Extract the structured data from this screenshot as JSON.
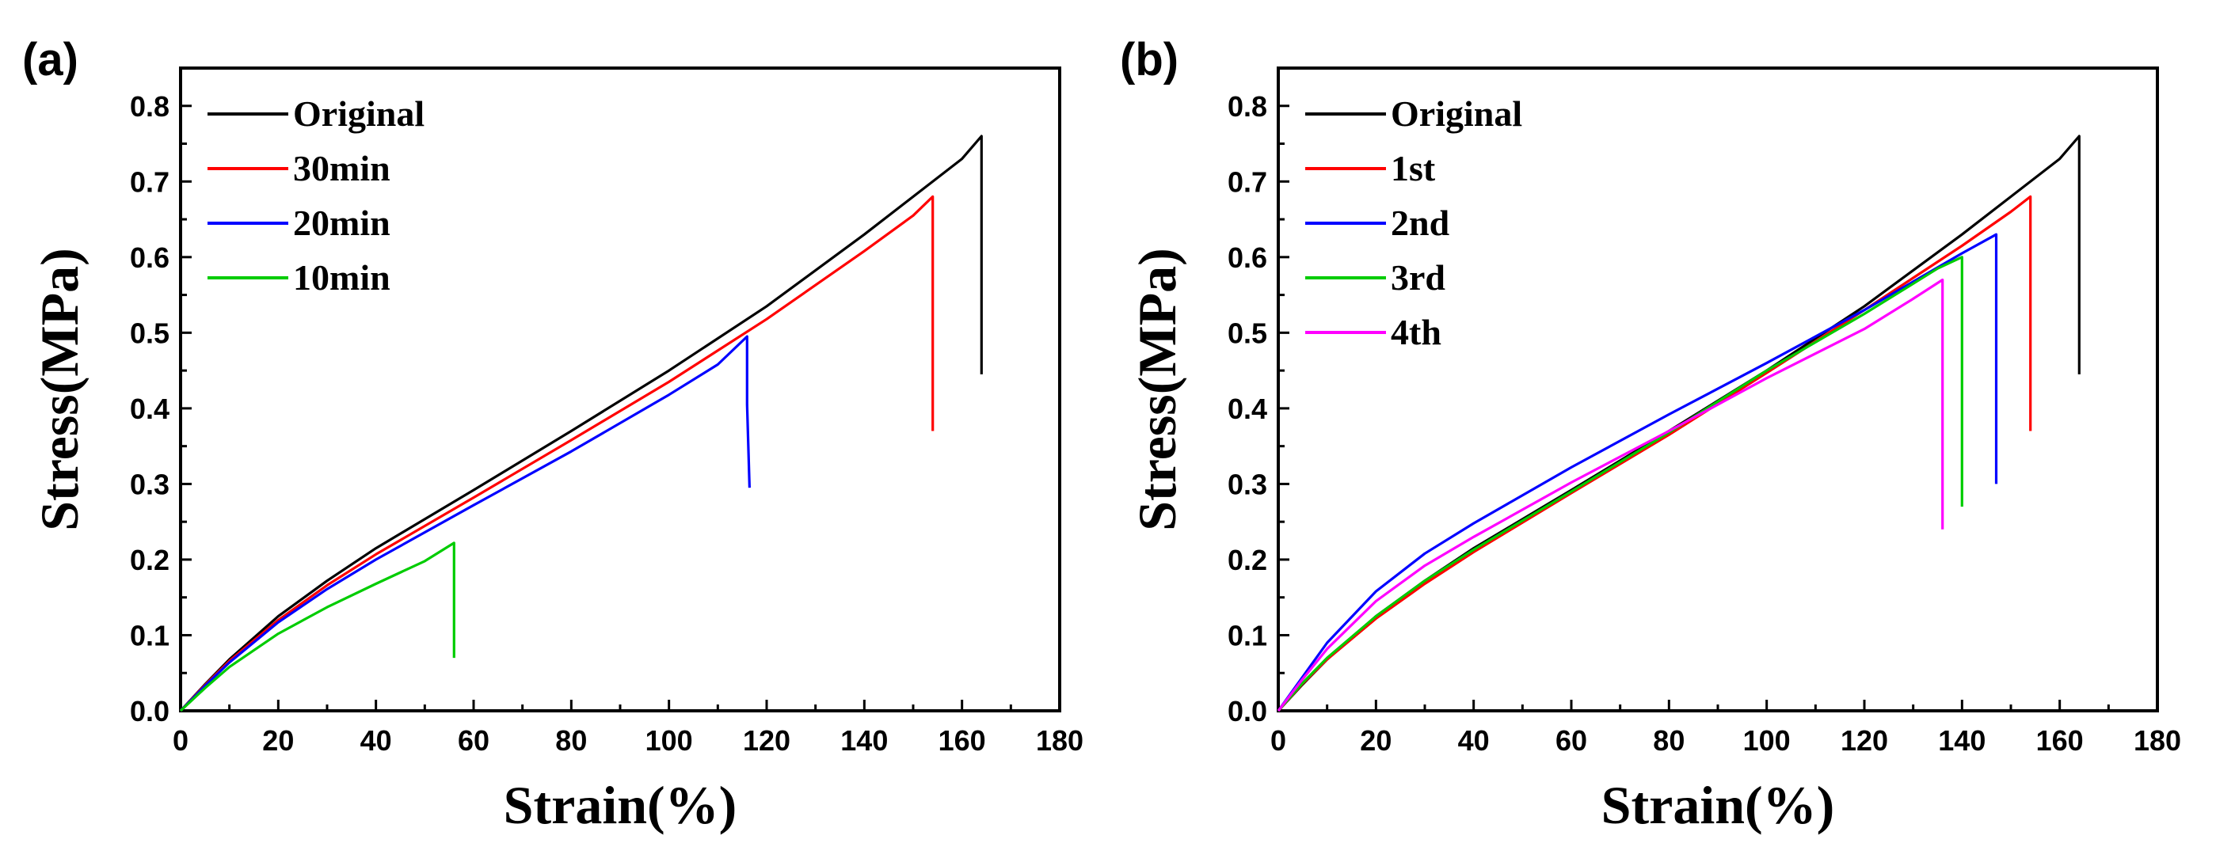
{
  "chart_data": [
    {
      "type": "line",
      "panel_label": "(a)",
      "xlabel": "Strain(%)",
      "ylabel": "Stress(MPa)",
      "xlim": [
        0,
        180
      ],
      "ylim": [
        0,
        0.85
      ],
      "xticks": [
        "0",
        "20",
        "40",
        "60",
        "80",
        "100",
        "120",
        "140",
        "160",
        "180"
      ],
      "xtick_values": [
        0,
        20,
        40,
        60,
        80,
        100,
        120,
        140,
        160,
        180
      ],
      "yticks": [
        "0.0",
        "0.1",
        "0.2",
        "0.3",
        "0.4",
        "0.5",
        "0.6",
        "0.7",
        "0.8"
      ],
      "ytick_values": [
        0,
        0.1,
        0.2,
        0.3,
        0.4,
        0.5,
        0.6,
        0.7,
        0.8
      ],
      "legend_position": "top-left",
      "grid": false,
      "series": [
        {
          "name": "Original",
          "color": "#000000",
          "x": [
            0,
            5,
            10,
            20,
            30,
            40,
            60,
            80,
            100,
            120,
            140,
            160,
            164,
            164
          ],
          "y": [
            0,
            0.035,
            0.068,
            0.125,
            0.172,
            0.215,
            0.292,
            0.37,
            0.45,
            0.535,
            0.63,
            0.73,
            0.76,
            0.445
          ]
        },
        {
          "name": "30min",
          "color": "#ff0000",
          "x": [
            0,
            5,
            10,
            20,
            30,
            40,
            60,
            80,
            100,
            120,
            140,
            150,
            154,
            154
          ],
          "y": [
            0,
            0.034,
            0.066,
            0.12,
            0.166,
            0.207,
            0.282,
            0.358,
            0.435,
            0.518,
            0.608,
            0.655,
            0.68,
            0.37
          ]
        },
        {
          "name": "20min",
          "color": "#0000ff",
          "x": [
            0,
            5,
            10,
            20,
            30,
            40,
            60,
            80,
            100,
            110,
            116,
            116,
            116.5
          ],
          "y": [
            0,
            0.033,
            0.064,
            0.117,
            0.161,
            0.2,
            0.272,
            0.343,
            0.418,
            0.458,
            0.495,
            0.405,
            0.295
          ]
        },
        {
          "name": "10min",
          "color": "#00cc00",
          "x": [
            0,
            5,
            10,
            20,
            30,
            40,
            50,
            56,
            56
          ],
          "y": [
            0,
            0.03,
            0.058,
            0.102,
            0.137,
            0.168,
            0.198,
            0.222,
            0.07
          ]
        }
      ]
    },
    {
      "type": "line",
      "panel_label": "(b)",
      "xlabel": "Strain(%)",
      "ylabel": "Stress(MPa)",
      "xlim": [
        0,
        180
      ],
      "ylim": [
        0,
        0.85
      ],
      "xticks": [
        "0",
        "20",
        "40",
        "60",
        "80",
        "100",
        "120",
        "140",
        "160",
        "180"
      ],
      "xtick_values": [
        0,
        20,
        40,
        60,
        80,
        100,
        120,
        140,
        160,
        180
      ],
      "yticks": [
        "0.0",
        "0.1",
        "0.2",
        "0.3",
        "0.4",
        "0.5",
        "0.6",
        "0.7",
        "0.8"
      ],
      "ytick_values": [
        0,
        0.1,
        0.2,
        0.3,
        0.4,
        0.5,
        0.6,
        0.7,
        0.8
      ],
      "legend_position": "top-left",
      "grid": false,
      "series": [
        {
          "name": "Original",
          "color": "#000000",
          "x": [
            0,
            5,
            10,
            20,
            30,
            40,
            60,
            80,
            100,
            120,
            140,
            160,
            164,
            164
          ],
          "y": [
            0,
            0.035,
            0.068,
            0.125,
            0.172,
            0.215,
            0.292,
            0.37,
            0.45,
            0.535,
            0.63,
            0.73,
            0.76,
            0.445
          ]
        },
        {
          "name": "1st",
          "color": "#ff0000",
          "x": [
            0,
            5,
            10,
            20,
            30,
            40,
            60,
            80,
            100,
            120,
            140,
            150,
            154,
            154
          ],
          "y": [
            0,
            0.036,
            0.068,
            0.122,
            0.168,
            0.21,
            0.288,
            0.365,
            0.447,
            0.53,
            0.615,
            0.66,
            0.68,
            0.37
          ]
        },
        {
          "name": "2nd",
          "color": "#0000ff",
          "x": [
            0,
            5,
            10,
            20,
            30,
            40,
            60,
            80,
            100,
            120,
            140,
            147,
            147
          ],
          "y": [
            0,
            0.045,
            0.09,
            0.158,
            0.208,
            0.248,
            0.322,
            0.392,
            0.46,
            0.53,
            0.605,
            0.63,
            0.3
          ]
        },
        {
          "name": "3rd",
          "color": "#00cc00",
          "x": [
            0,
            5,
            10,
            20,
            30,
            40,
            60,
            80,
            100,
            120,
            135,
            140,
            140
          ],
          "y": [
            0,
            0.037,
            0.07,
            0.125,
            0.172,
            0.213,
            0.29,
            0.368,
            0.45,
            0.525,
            0.585,
            0.6,
            0.27
          ]
        },
        {
          "name": "4th",
          "color": "#ff00ff",
          "x": [
            0,
            5,
            10,
            20,
            30,
            40,
            60,
            80,
            100,
            120,
            130,
            136,
            136
          ],
          "y": [
            0,
            0.042,
            0.082,
            0.145,
            0.192,
            0.23,
            0.302,
            0.37,
            0.44,
            0.505,
            0.545,
            0.57,
            0.24
          ]
        }
      ]
    }
  ]
}
